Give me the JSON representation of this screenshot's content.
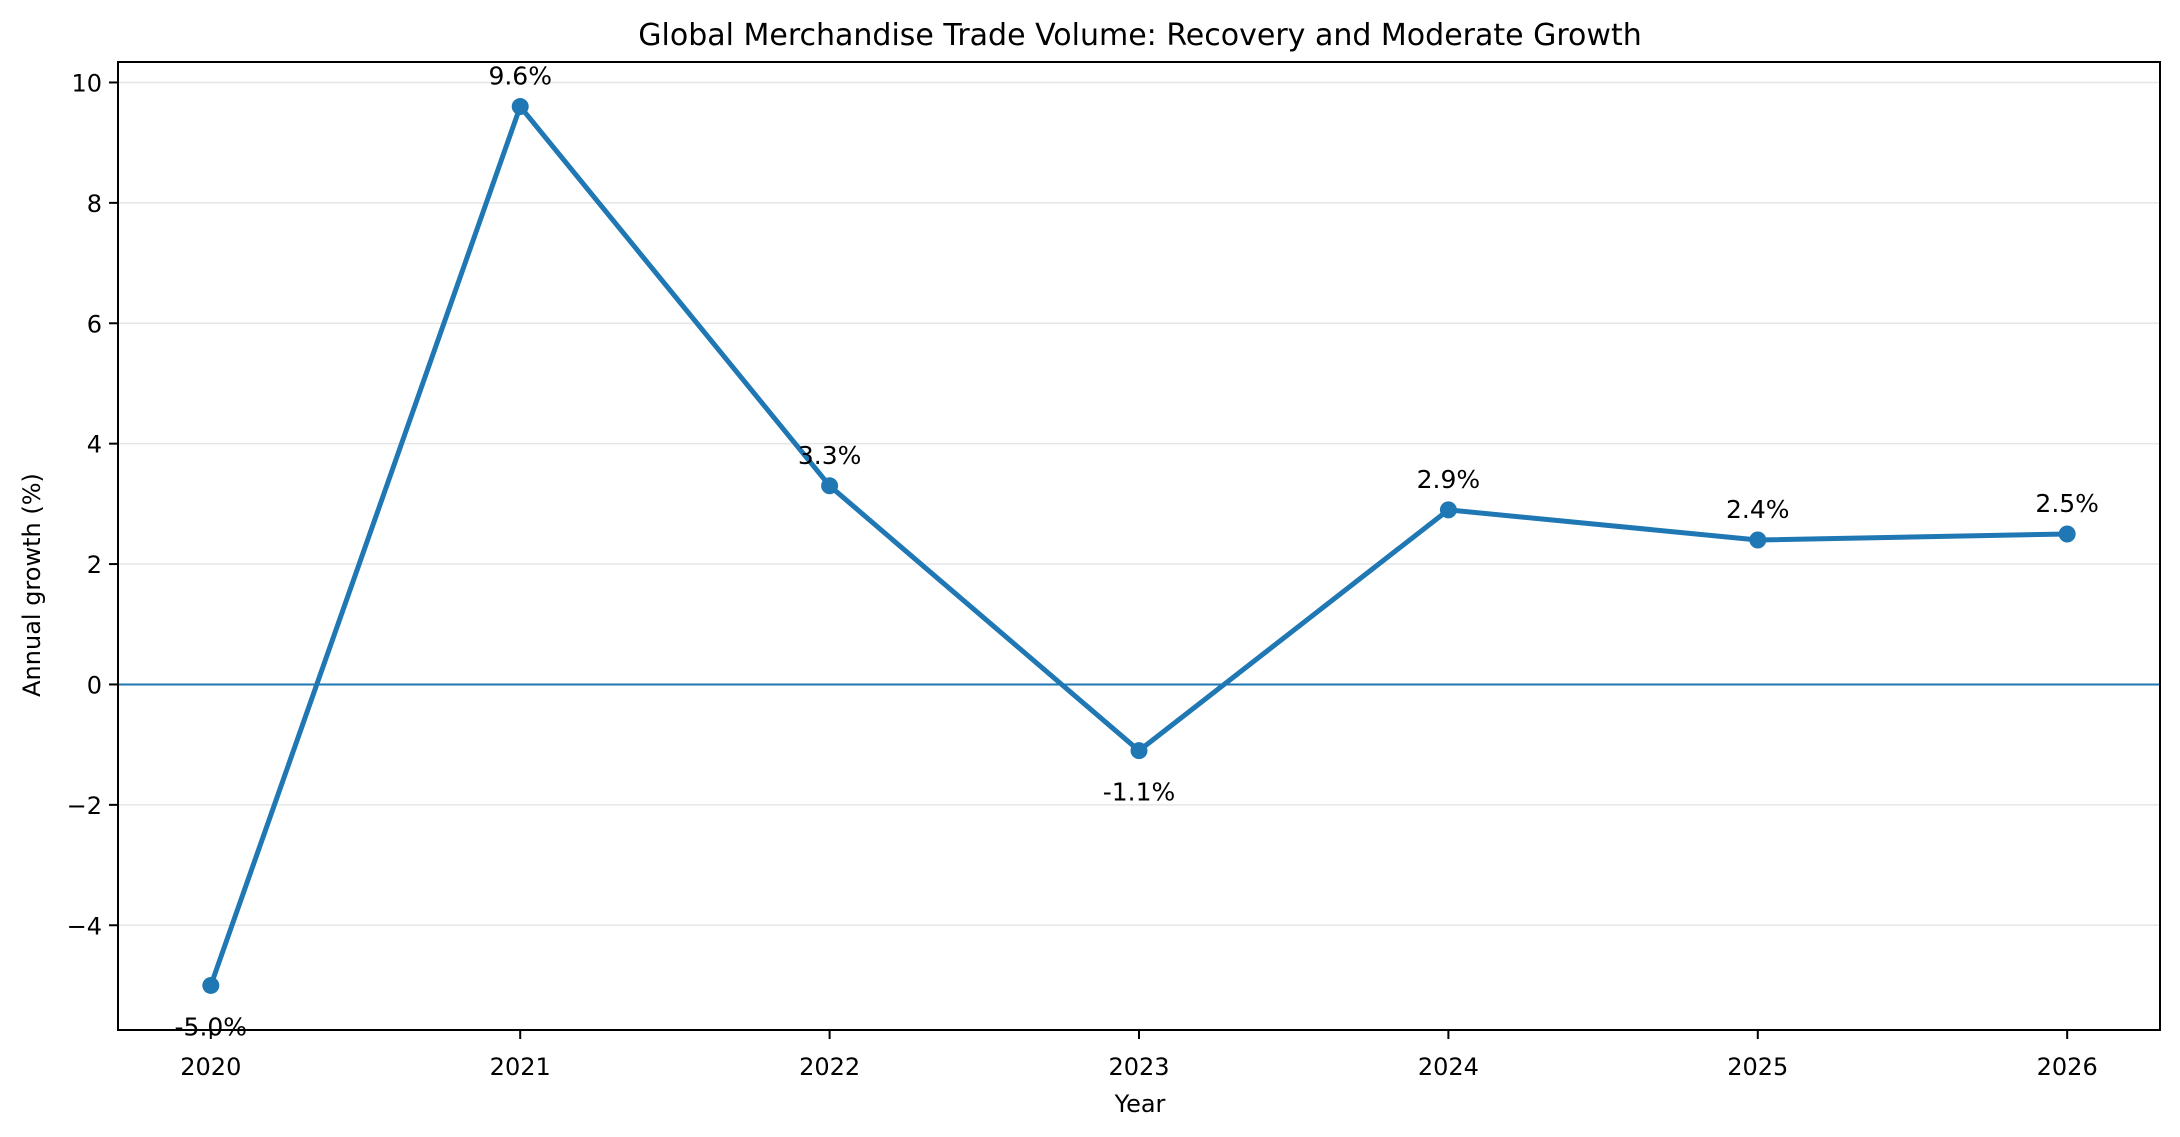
{
  "chart_data": {
    "type": "line",
    "title": "Global Merchandise Trade Volume: Recovery and Moderate Growth",
    "xlabel": "Year",
    "ylabel": "Annual growth (%)",
    "categories": [
      "2020",
      "2021",
      "2022",
      "2023",
      "2024",
      "2025",
      "2026"
    ],
    "series": [
      {
        "values": [
          -5.0,
          9.6,
          3.3,
          -1.1,
          2.9,
          2.4,
          2.5
        ],
        "data_labels": [
          "-5.0%",
          "9.6%",
          "3.3%",
          "-1.1%",
          "2.9%",
          "2.4%",
          "2.5%"
        ],
        "color": "#1f77b4"
      }
    ],
    "yticks": [
      -4,
      -2,
      0,
      2,
      4,
      6,
      8,
      10
    ],
    "ytick_labels": [
      "−4",
      "−2",
      "0",
      "2",
      "4",
      "6",
      "8",
      "10"
    ],
    "ylim": [
      -5.74,
      10.34
    ],
    "xlim": [
      -0.3,
      6.3
    ],
    "reference_line": {
      "y": 0,
      "color": "#1f77b4"
    },
    "grid": {
      "y": true,
      "x": false,
      "color": "#e6e6e6"
    },
    "legend": "none"
  }
}
